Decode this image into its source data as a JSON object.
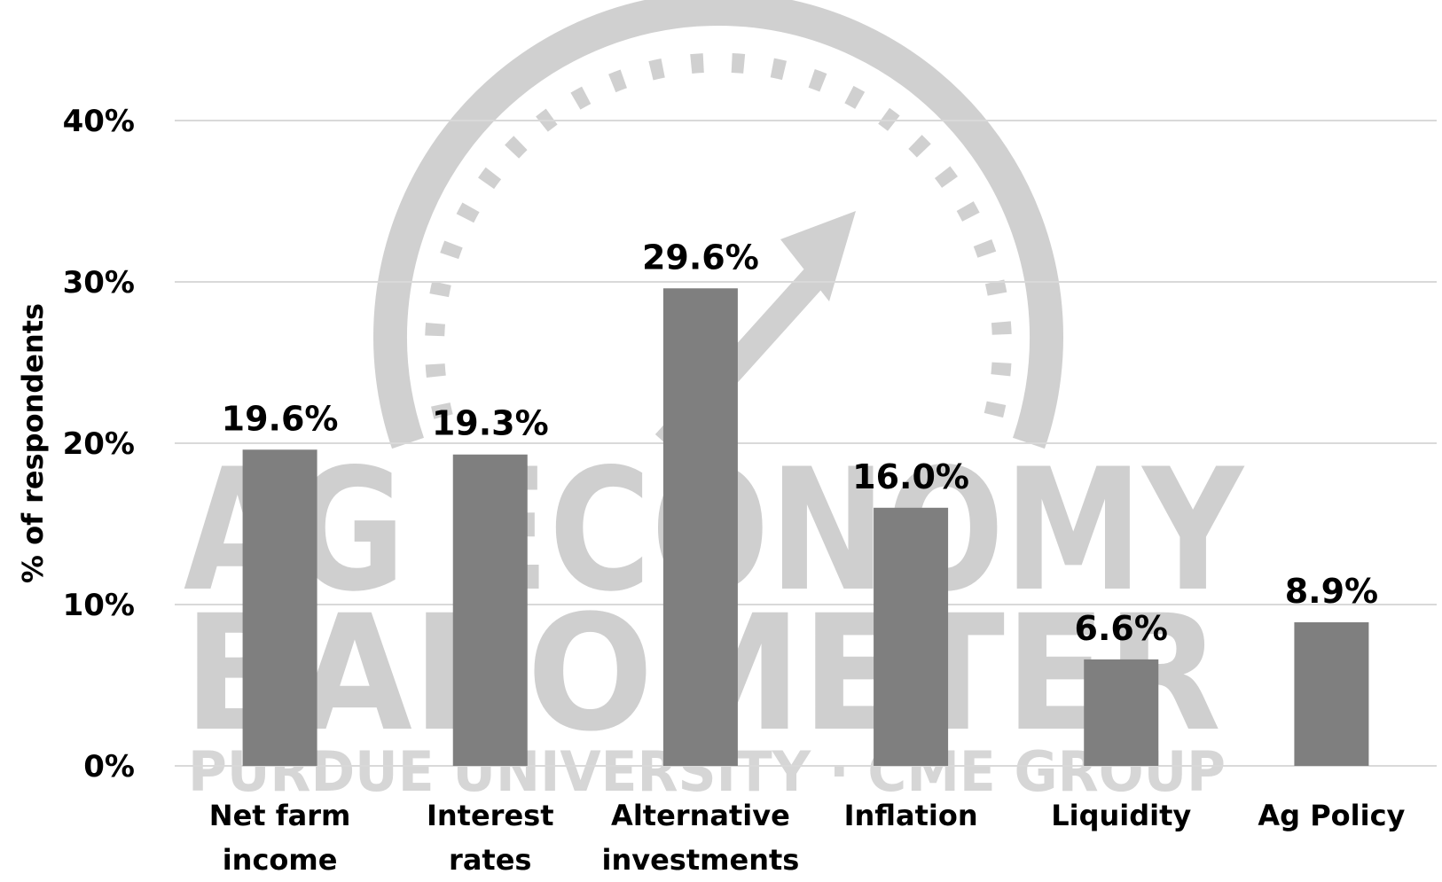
{
  "chart_data": {
    "type": "bar",
    "y_label": "% of respondents",
    "categories": [
      "Net farm income",
      "Interest rates",
      "Alternative investments",
      "Inflation",
      "Liquidity",
      "Ag Policy"
    ],
    "values": [
      19.6,
      19.3,
      29.6,
      16.0,
      6.6,
      8.9
    ],
    "value_labels": [
      "19.6%",
      "19.3%",
      "29.6%",
      "16.0%",
      "6.6%",
      "8.9%"
    ],
    "color": "#7f7f7f",
    "ylim": [
      0,
      40
    ],
    "yticks": [
      {
        "value": 0,
        "label": "0%"
      },
      {
        "value": 10,
        "label": "10%"
      },
      {
        "value": 20,
        "label": "20%"
      },
      {
        "value": 30,
        "label": "30%"
      },
      {
        "value": 40,
        "label": "40%"
      }
    ],
    "grid": true,
    "watermark": [
      "AG ECONOMY",
      "BAROMETER",
      "PURDUE UNIVERSITY · CME GROUP"
    ]
  }
}
